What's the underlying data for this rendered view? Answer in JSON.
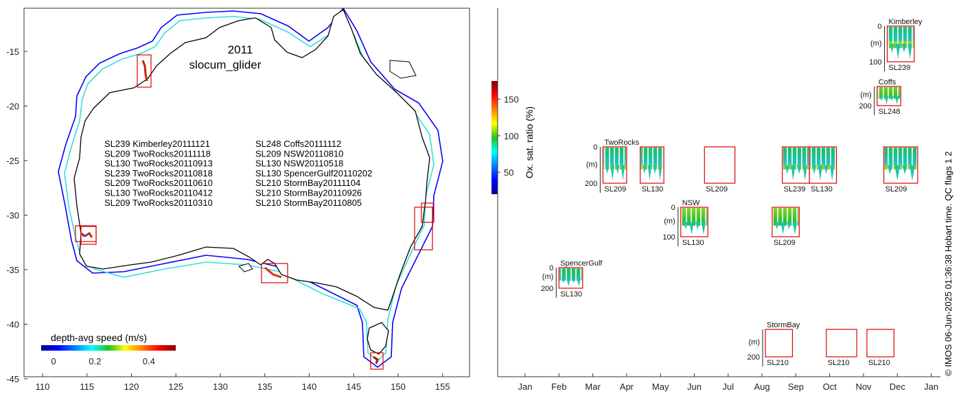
{
  "map": {
    "year": "2011",
    "platform": "slocum_glider",
    "x_ticks": [
      "110",
      "115",
      "120",
      "125",
      "130",
      "135",
      "140",
      "145",
      "150",
      "155"
    ],
    "y_ticks": [
      "-15",
      "-20",
      "-25",
      "-30",
      "-35",
      "-40",
      "-45"
    ],
    "legend_col1": [
      "SL239 Kimberley20111121",
      "SL209 TwoRocks20111118",
      "SL130 TwoRocks20110913",
      "SL239 TwoRocks20110818",
      "SL209 TwoRocks20110610",
      "SL130 TwoRocks20110412",
      "SL209 TwoRocks20110310"
    ],
    "legend_col2": [
      "SL248 Coffs20111112",
      "SL209 NSW20110810",
      "SL130 NSW20110518",
      "SL130 SpencerGulf20110202",
      "SL210 StormBay20111104",
      "SL210 StormBay20110926",
      "SL210 StormBay20110805"
    ],
    "speed_colorbar": {
      "label": "depth-avg speed (m/s)",
      "ticks": [
        "0",
        "0.2",
        "0.4"
      ]
    }
  },
  "timeline": {
    "months": [
      "Jan",
      "Feb",
      "Mar",
      "Apr",
      "May",
      "Jun",
      "Jul",
      "Aug",
      "Sep",
      "Oct",
      "Nov",
      "Dec",
      "Jan"
    ],
    "oxygen_colorbar": {
      "label": "Ox. sat. ratio (%)",
      "ticks": [
        "50",
        "100",
        "150"
      ]
    },
    "footer": "© IMOS 06-Jun-2025 01:36:38 Hobart time. QC flags 1  2",
    "sites": [
      {
        "name": "Kimberley",
        "depth_top": "0",
        "depth_bottom": "100",
        "unit": "(m)",
        "gliders": [
          "SL239"
        ]
      },
      {
        "name": "Coffs",
        "depth_top": "",
        "depth_bottom": "200",
        "unit": "(m)",
        "gliders": [
          "SL248"
        ]
      },
      {
        "name": "TwoRocks",
        "depth_top": "0",
        "depth_bottom": "200",
        "unit": "(m)",
        "gliders": [
          "SL209",
          "SL130",
          "SL209",
          "SL239",
          "SL130",
          "SL209"
        ]
      },
      {
        "name": "NSW",
        "depth_top": "0",
        "depth_bottom": "100",
        "unit": "(m)",
        "gliders": [
          "SL130",
          "SL209"
        ]
      },
      {
        "name": "SpencerGulf",
        "depth_top": "0",
        "depth_bottom": "200",
        "unit": "(m)",
        "gliders": [
          "SL130"
        ]
      },
      {
        "name": "StormBay",
        "depth_top": "",
        "depth_bottom": "200",
        "unit": "(m)",
        "gliders": [
          "SL210"
        ]
      }
    ]
  },
  "chart_data": [
    {
      "type": "scatter",
      "title": "2011 slocum_glider",
      "xlabel": "",
      "ylabel": "",
      "xlim": [
        108.5,
        158.5
      ],
      "ylim": [
        -45,
        -12
      ],
      "colorbar": {
        "label": "depth-avg speed (m/s)",
        "range": [
          0,
          0.5
        ]
      },
      "deployment_regions": [
        {
          "name": "Kimberley",
          "lon": [
            121.2,
            122.5
          ],
          "lat": [
            -18.1,
            -15.5
          ]
        },
        {
          "name": "TwoRocks",
          "lon": [
            114.3,
            116.1
          ],
          "lat": [
            -32.6,
            -31.0
          ]
        },
        {
          "name": "SpencerGulf",
          "lon": [
            134.9,
            137.8
          ],
          "lat": [
            -36.3,
            -34.4
          ]
        },
        {
          "name": "NSW",
          "lon": [
            152.1,
            154.0
          ],
          "lat": [
            -33.2,
            -29.0
          ]
        },
        {
          "name": "StormBay",
          "lon": [
            147.1,
            148.5
          ],
          "lat": [
            -43.9,
            -42.9
          ]
        }
      ]
    },
    {
      "type": "heatmap",
      "title": "",
      "xlabel": "",
      "ylabel": "(m)",
      "colorbar": {
        "label": "Ox. sat. ratio (%)",
        "range": [
          20,
          175
        ]
      },
      "deployments": [
        {
          "site": "Kimberley",
          "glider": "SL239",
          "start_month": 11.7,
          "end_month": 12.5,
          "max_depth": 100,
          "data": true
        },
        {
          "site": "Coffs",
          "glider": "SL248",
          "start_month": 11.4,
          "end_month": 12.1,
          "max_depth": 200,
          "data": true
        },
        {
          "site": "TwoRocks",
          "glider": "SL209",
          "start_month": 3.3,
          "end_month": 4.0,
          "max_depth": 200,
          "data": true
        },
        {
          "site": "TwoRocks",
          "glider": "SL130",
          "start_month": 4.4,
          "end_month": 5.1,
          "max_depth": 200,
          "data": true
        },
        {
          "site": "TwoRocks",
          "glider": "SL209",
          "start_month": 6.3,
          "end_month": 7.2,
          "max_depth": 200,
          "data": false
        },
        {
          "site": "TwoRocks",
          "glider": "SL239",
          "start_month": 8.6,
          "end_month": 9.4,
          "max_depth": 200,
          "data": true
        },
        {
          "site": "TwoRocks",
          "glider": "SL130",
          "start_month": 9.4,
          "end_month": 10.2,
          "max_depth": 200,
          "data": true
        },
        {
          "site": "TwoRocks",
          "glider": "SL209",
          "start_month": 11.6,
          "end_month": 12.6,
          "max_depth": 200,
          "data": true
        },
        {
          "site": "NSW",
          "glider": "SL130",
          "start_month": 5.6,
          "end_month": 6.4,
          "max_depth": 100,
          "data": true
        },
        {
          "site": "NSW",
          "glider": "SL209",
          "start_month": 8.3,
          "end_month": 9.1,
          "max_depth": 100,
          "data": true
        },
        {
          "site": "SpencerGulf",
          "glider": "SL130",
          "start_month": 2.0,
          "end_month": 2.7,
          "max_depth": 200,
          "data": true
        },
        {
          "site": "StormBay",
          "glider": "SL210",
          "start_month": 8.1,
          "end_month": 8.9,
          "max_depth": 200,
          "data": false
        },
        {
          "site": "StormBay",
          "glider": "SL210",
          "start_month": 9.9,
          "end_month": 10.8,
          "max_depth": 200,
          "data": false
        },
        {
          "site": "StormBay",
          "glider": "SL210",
          "start_month": 11.1,
          "end_month": 11.9,
          "max_depth": 200,
          "data": false
        }
      ]
    }
  ]
}
